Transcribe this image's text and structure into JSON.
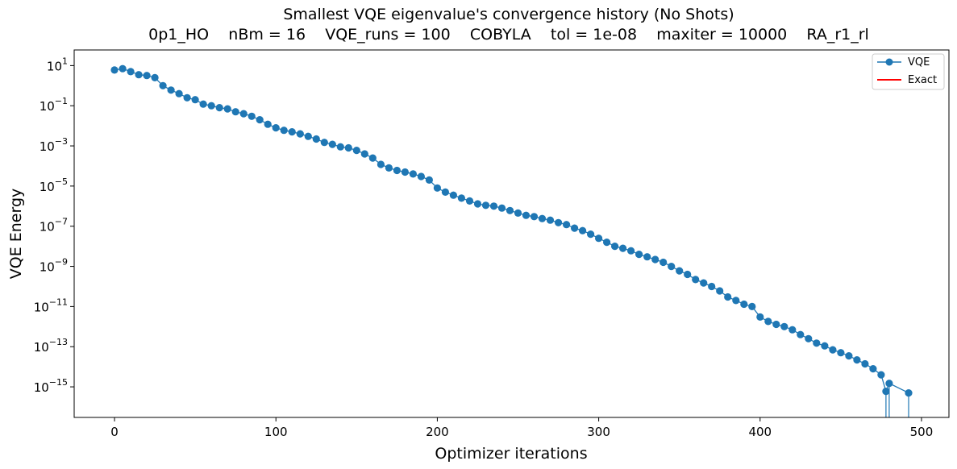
{
  "chart_data": {
    "type": "line",
    "title": "Smallest VQE eigenvalue's convergence history (No Shots)",
    "subtitle": "0p1_HO    nBm = 16    VQE_runs = 100    COBYLA    tol = 1e-08    maxiter = 10000    RA_r1_rl",
    "xlabel": "Optimizer iterations",
    "ylabel": "VQE Energy",
    "xscale": "linear",
    "yscale": "log",
    "xlim": [
      -25,
      517
    ],
    "ylim": [
      3e-17,
      60
    ],
    "xticks": [
      0,
      100,
      200,
      300,
      400,
      500
    ],
    "xtick_labels": [
      "0",
      "100",
      "200",
      "300",
      "400",
      "500"
    ],
    "yticks": [
      10.0,
      0.1,
      0.001,
      1e-05,
      1e-07,
      1e-09,
      1e-11,
      1e-13,
      1e-15
    ],
    "ytick_labels": [
      {
        "base": "10",
        "exp": "1"
      },
      {
        "base": "10",
        "exp": "−1"
      },
      {
        "base": "10",
        "exp": "−3"
      },
      {
        "base": "10",
        "exp": "−5"
      },
      {
        "base": "10",
        "exp": "−7"
      },
      {
        "base": "10",
        "exp": "−9"
      },
      {
        "base": "10",
        "exp": "−11"
      },
      {
        "base": "10",
        "exp": "−13"
      },
      {
        "base": "10",
        "exp": "−15"
      }
    ],
    "grid": false,
    "legend": {
      "position": "top-right",
      "entries": [
        "VQE",
        "Exact"
      ]
    },
    "series": [
      {
        "name": "VQE",
        "color": "#1f77b4",
        "marker": "circle",
        "x": [
          0,
          5,
          10,
          15,
          20,
          25,
          30,
          35,
          40,
          45,
          50,
          55,
          60,
          65,
          70,
          75,
          80,
          85,
          90,
          95,
          100,
          105,
          110,
          115,
          120,
          125,
          130,
          135,
          140,
          145,
          150,
          155,
          160,
          165,
          170,
          175,
          180,
          185,
          190,
          195,
          200,
          205,
          210,
          215,
          220,
          225,
          230,
          235,
          240,
          245,
          250,
          255,
          260,
          265,
          270,
          275,
          280,
          285,
          290,
          295,
          300,
          305,
          310,
          315,
          320,
          325,
          330,
          335,
          340,
          345,
          350,
          355,
          360,
          365,
          370,
          375,
          380,
          385,
          390,
          395,
          400,
          405,
          410,
          415,
          420,
          425,
          430,
          435,
          440,
          445,
          450,
          455,
          460,
          465,
          470,
          475,
          478,
          480,
          492
        ],
        "y": [
          6.0,
          7.0,
          5.0,
          3.5,
          3.2,
          2.5,
          1.0,
          0.6,
          0.4,
          0.25,
          0.2,
          0.12,
          0.1,
          0.08,
          0.07,
          0.05,
          0.04,
          0.03,
          0.02,
          0.012,
          0.008,
          0.006,
          0.005,
          0.004,
          0.003,
          0.0022,
          0.0015,
          0.0012,
          0.0009,
          0.0008,
          0.0006,
          0.0004,
          0.00025,
          0.00012,
          8e-05,
          6e-05,
          5e-05,
          4e-05,
          3e-05,
          2e-05,
          8e-06,
          5e-06,
          3.5e-06,
          2.5e-06,
          1.8e-06,
          1.3e-06,
          1.1e-06,
          1e-06,
          8e-07,
          6e-07,
          4.5e-07,
          3.5e-07,
          3e-07,
          2.4e-07,
          2e-07,
          1.5e-07,
          1.2e-07,
          8e-08,
          6e-08,
          4e-08,
          2.5e-08,
          1.6e-08,
          1e-08,
          8e-09,
          6e-09,
          4e-09,
          3e-09,
          2.2e-09,
          1.6e-09,
          1e-09,
          6e-10,
          4e-10,
          2.2e-10,
          1.5e-10,
          1e-10,
          6e-11,
          3e-11,
          2e-11,
          1.3e-11,
          1e-11,
          3e-12,
          1.8e-12,
          1.3e-12,
          1e-12,
          7e-13,
          4e-13,
          2.5e-13,
          1.5e-13,
          1.1e-13,
          7e-14,
          5e-14,
          3.5e-14,
          2.2e-14,
          1.4e-14,
          8e-15,
          4e-15,
          6e-16,
          1.5e-15,
          5e-16
        ]
      },
      {
        "name": "Exact",
        "color": "#ff0000",
        "marker": "none",
        "x": [],
        "y": []
      }
    ]
  }
}
